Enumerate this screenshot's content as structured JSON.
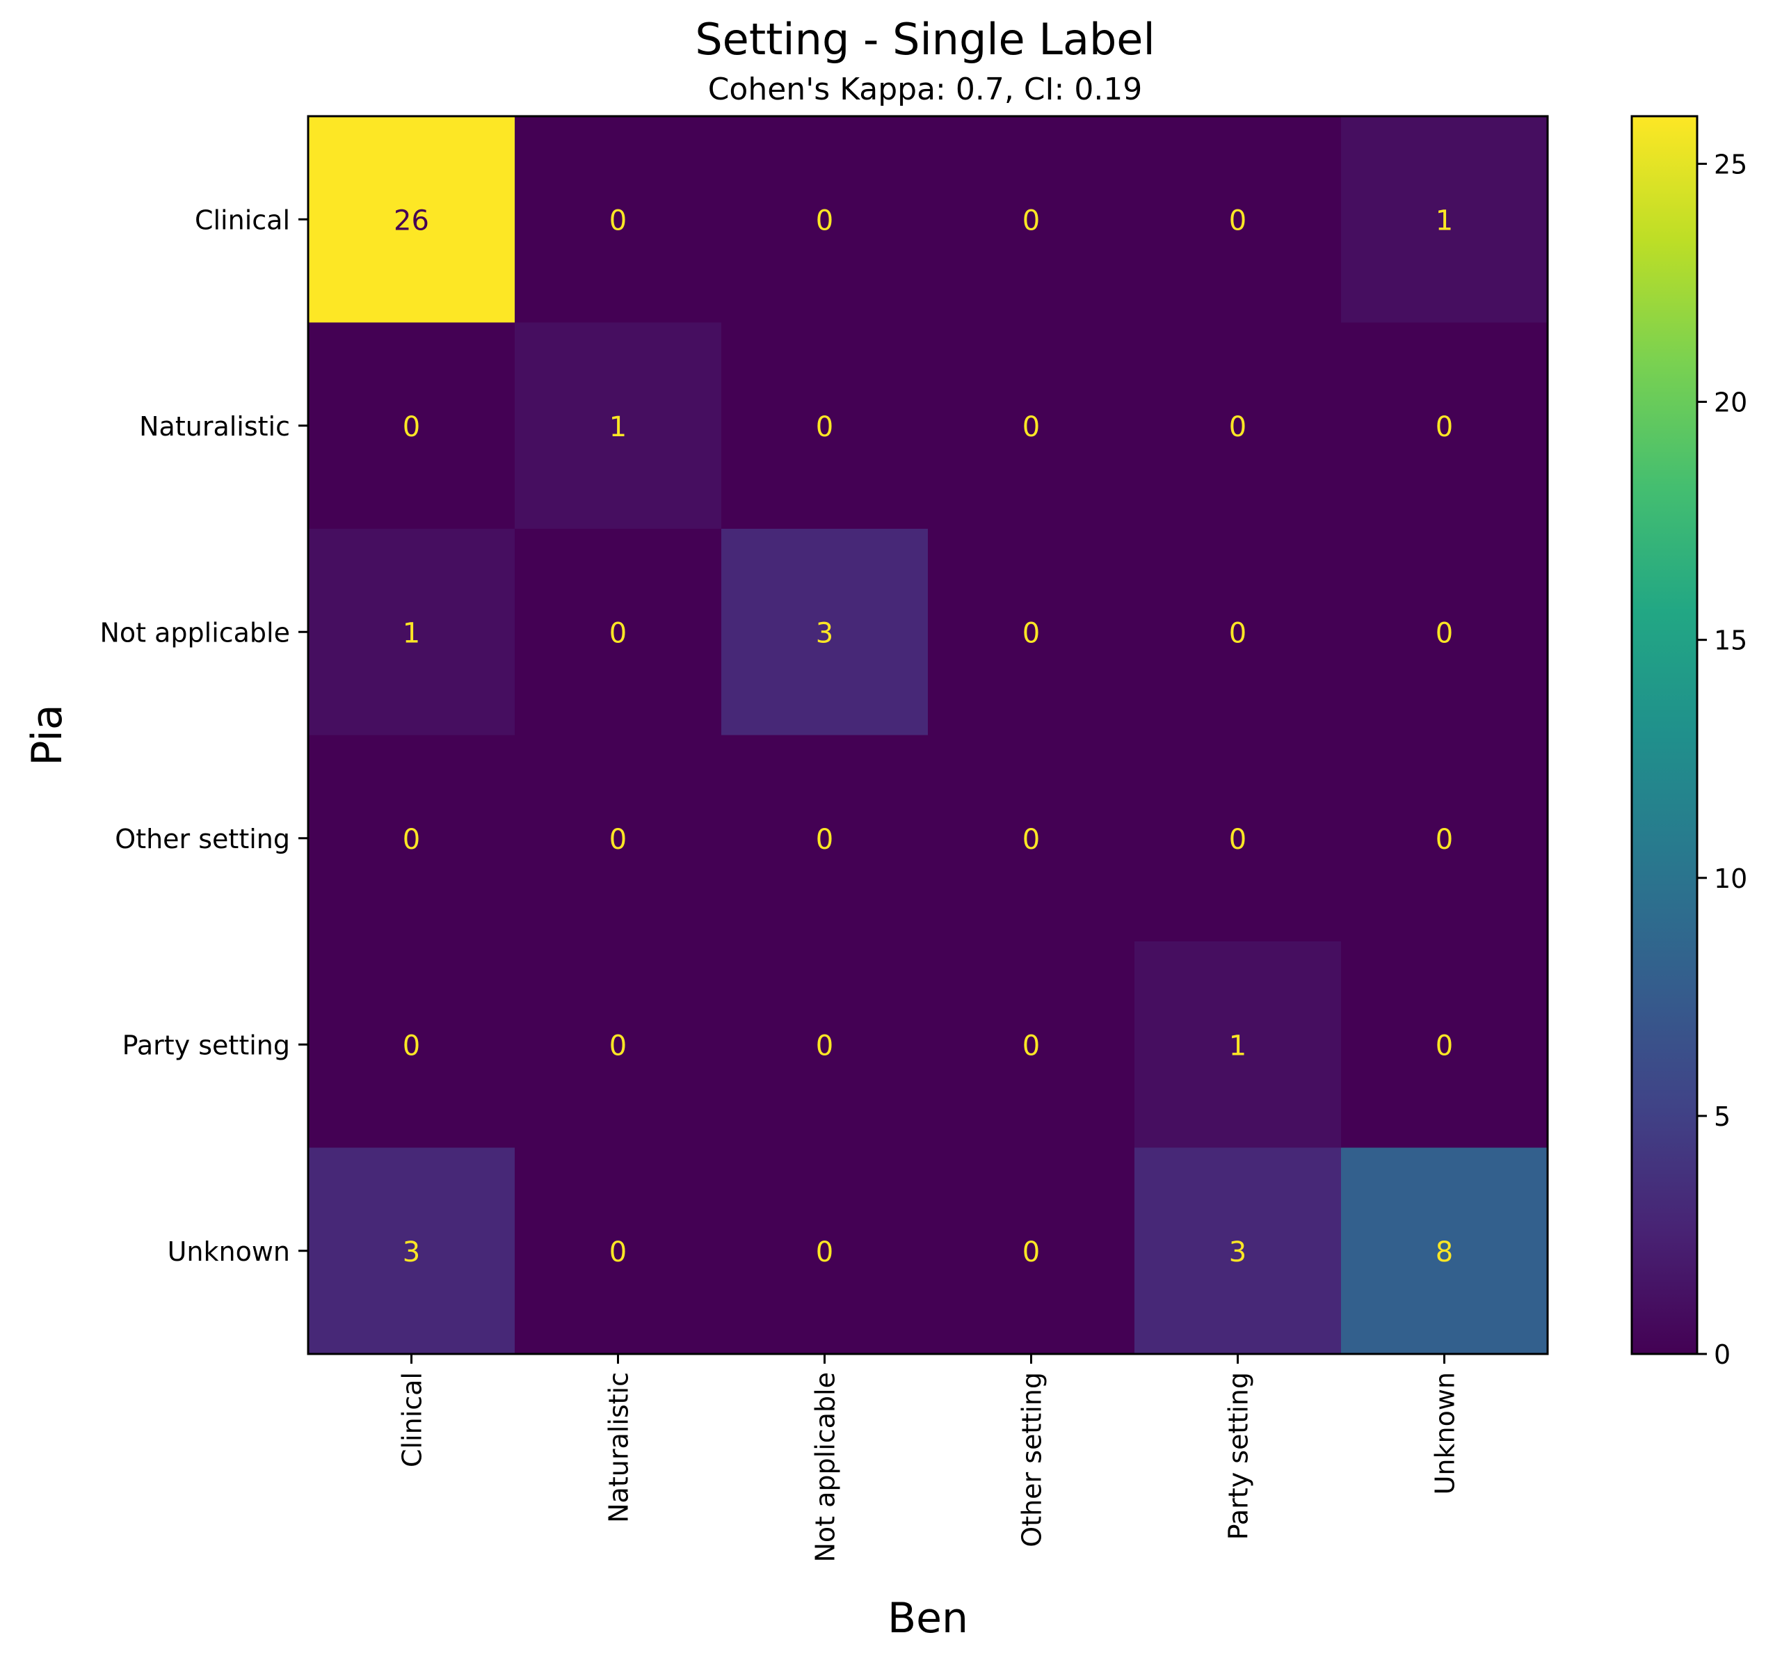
{
  "chart_data": {
    "type": "heatmap",
    "title": "Setting - Single Label",
    "subtitle": "Cohen's Kappa: 0.7, CI: 0.19",
    "xlabel": "Ben",
    "ylabel": "Pia",
    "x_categories": [
      "Clinical",
      "Naturalistic",
      "Not applicable",
      "Other setting",
      "Party setting",
      "Unknown"
    ],
    "y_categories": [
      "Clinical",
      "Naturalistic",
      "Not applicable",
      "Other setting",
      "Party setting",
      "Unknown"
    ],
    "values": [
      [
        26,
        0,
        0,
        0,
        0,
        1
      ],
      [
        0,
        1,
        0,
        0,
        0,
        0
      ],
      [
        1,
        0,
        3,
        0,
        0,
        0
      ],
      [
        0,
        0,
        0,
        0,
        0,
        0
      ],
      [
        0,
        0,
        0,
        0,
        1,
        0
      ],
      [
        3,
        0,
        0,
        0,
        3,
        8
      ]
    ],
    "colormap": "viridis",
    "colorbar": {
      "min": 0,
      "max": 26,
      "ticks": [
        0,
        5,
        10,
        15,
        20,
        25
      ]
    },
    "grid": false,
    "annotation_colors": {
      "on_dark": "#fde725",
      "on_light": "#440154"
    }
  }
}
